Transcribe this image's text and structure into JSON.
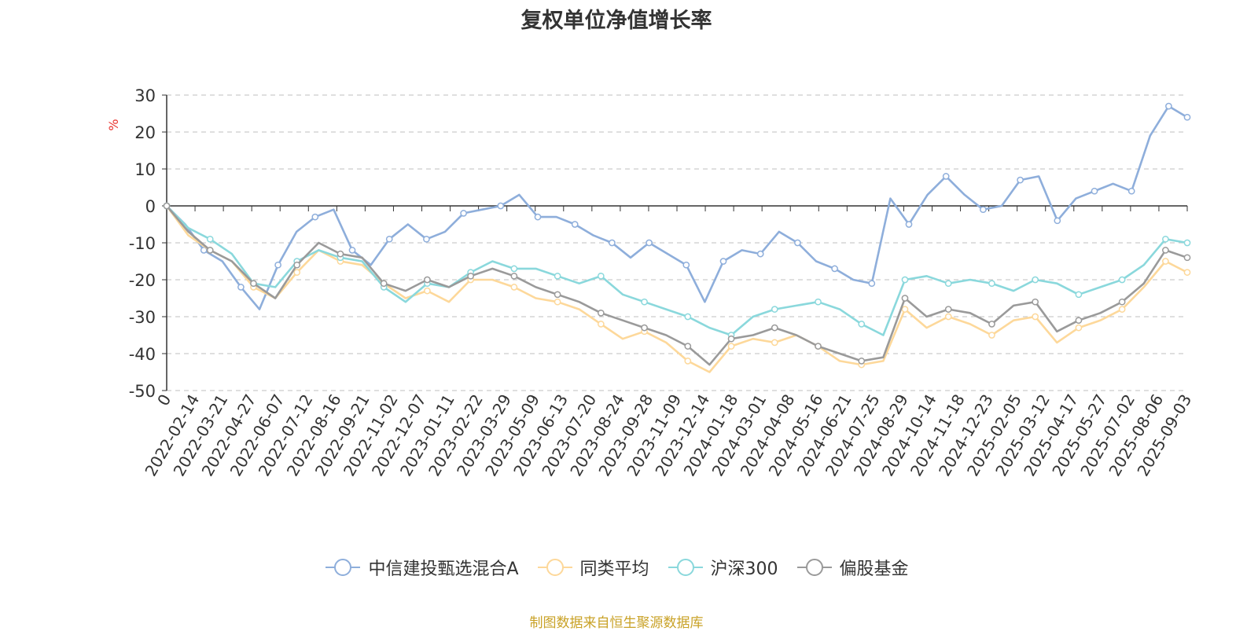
{
  "chart_data": {
    "type": "line",
    "title": "复权单位净值增长率",
    "ylabel": "%",
    "ylim": [
      -50,
      30
    ],
    "yticks": [
      30,
      20,
      10,
      0,
      -10,
      -20,
      -30,
      -40,
      -50
    ],
    "xlabels": [
      "0",
      "2022-02-14",
      "2022-03-21",
      "2022-04-27",
      "2022-06-07",
      "2022-07-12",
      "2022-08-16",
      "2022-09-21",
      "2022-11-02",
      "2022-12-07",
      "2023-01-11",
      "2023-02-22",
      "2023-03-29",
      "2023-05-09",
      "2023-06-13",
      "2023-07-20",
      "2023-08-24",
      "2023-09-28",
      "2023-11-09",
      "2023-12-14",
      "2024-01-18",
      "2024-03-01",
      "2024-04-08",
      "2024-05-16",
      "2024-06-21",
      "2024-07-25",
      "2024-08-29",
      "2024-10-14",
      "2024-11-18",
      "2024-12-23",
      "2025-02-05",
      "2025-03-12",
      "2025-04-17",
      "2025-05-27",
      "2025-07-02",
      "2025-08-06",
      "2025-09-03"
    ],
    "grid": true,
    "legend_position": "bottom",
    "series": [
      {
        "name": "中信建投甄选混合A",
        "color": "#8eaedb",
        "values": [
          0,
          -5,
          -12,
          -15,
          -22,
          -28,
          -16,
          -7,
          -3,
          -1,
          -12,
          -16,
          -9,
          -5,
          -9,
          -7,
          -2,
          -1,
          0,
          3,
          -3,
          -3,
          -5,
          -8,
          -10,
          -14,
          -10,
          -13,
          -16,
          -26,
          -15,
          -12,
          -13,
          -7,
          -10,
          -15,
          -17,
          -20,
          -21,
          2,
          -5,
          3,
          8,
          3,
          -1,
          0,
          7,
          8,
          -4,
          2,
          4,
          6,
          4,
          19,
          27,
          24
        ]
      },
      {
        "name": "同类平均",
        "color": "#fdd89a",
        "values": [
          0,
          -8,
          -12,
          -15,
          -22,
          -25,
          -18,
          -12,
          -15,
          -16,
          -21,
          -25,
          -23,
          -26,
          -20,
          -20,
          -22,
          -25,
          -26,
          -28,
          -32,
          -36,
          -34,
          -37,
          -42,
          -45,
          -38,
          -36,
          -37,
          -35,
          -38,
          -42,
          -43,
          -42,
          -28,
          -33,
          -30,
          -32,
          -35,
          -31,
          -30,
          -37,
          -33,
          -31,
          -28,
          -22,
          -15,
          -18
        ]
      },
      {
        "name": "沪深300",
        "color": "#8ad8dc",
        "values": [
          0,
          -6,
          -9,
          -13,
          -21,
          -22,
          -15,
          -12,
          -14,
          -15,
          -22,
          -26,
          -21,
          -22,
          -18,
          -15,
          -17,
          -17,
          -19,
          -21,
          -19,
          -24,
          -26,
          -28,
          -30,
          -33,
          -35,
          -30,
          -28,
          -27,
          -26,
          -28,
          -32,
          -35,
          -20,
          -19,
          -21,
          -20,
          -21,
          -23,
          -20,
          -21,
          -24,
          -22,
          -20,
          -16,
          -9,
          -10
        ]
      },
      {
        "name": "偏股基金",
        "color": "#9a9a9a",
        "values": [
          0,
          -7,
          -12,
          -15,
          -21,
          -25,
          -16,
          -10,
          -13,
          -14,
          -21,
          -23,
          -20,
          -22,
          -19,
          -17,
          -19,
          -22,
          -24,
          -26,
          -29,
          -31,
          -33,
          -35,
          -38,
          -43,
          -36,
          -35,
          -33,
          -35,
          -38,
          -40,
          -42,
          -41,
          -25,
          -30,
          -28,
          -29,
          -32,
          -27,
          -26,
          -34,
          -31,
          -29,
          -26,
          -21,
          -12,
          -14
        ]
      }
    ]
  },
  "legend": {
    "items": [
      "中信建投甄选混合A",
      "同类平均",
      "沪深300",
      "偏股基金"
    ]
  },
  "source": "制图数据来自恒生聚源数据库"
}
